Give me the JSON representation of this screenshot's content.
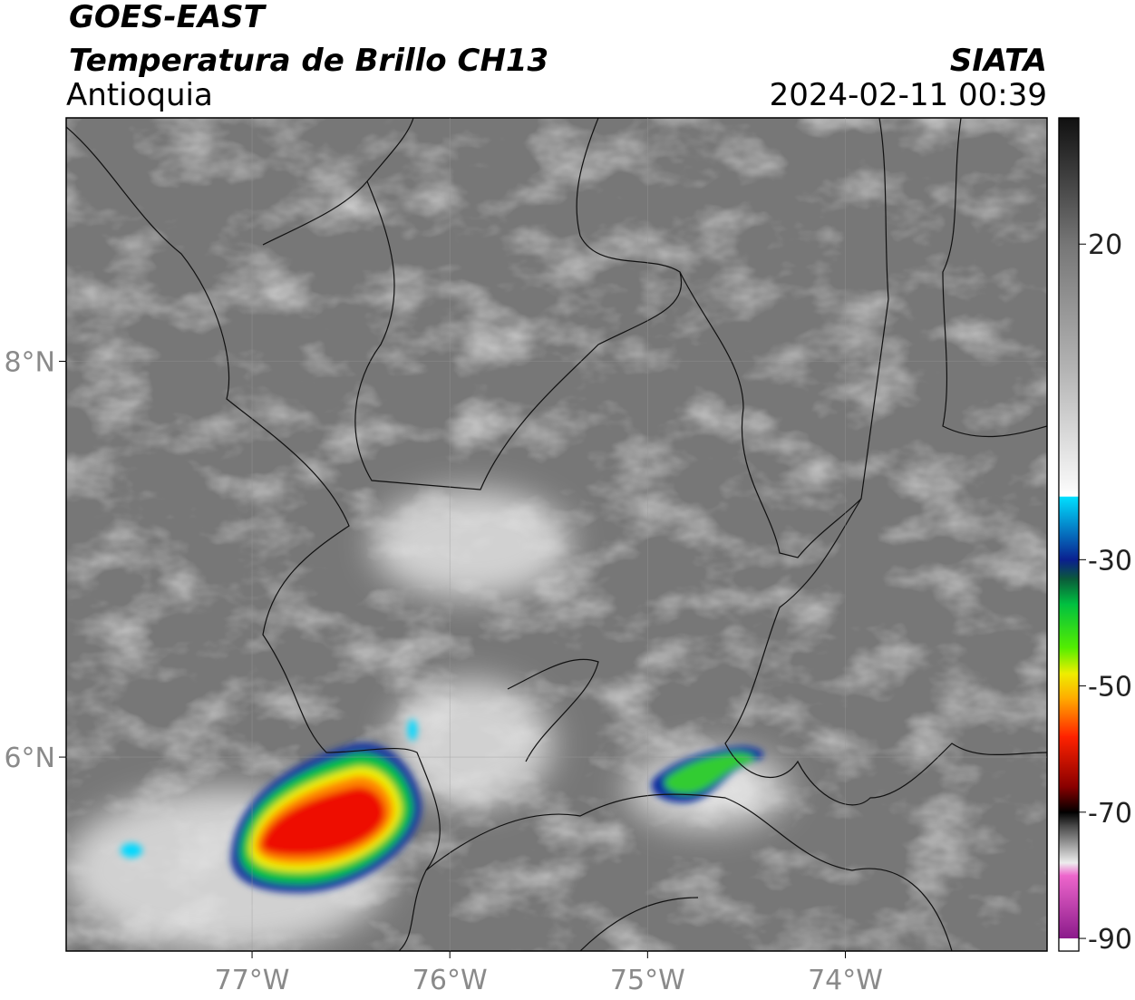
{
  "map": {
    "title": "GOES-EAST",
    "subtitle": "Temperatura de Brillo CH13",
    "region": "Antioquia",
    "source": "SIATA",
    "datetime": "2024-02-11 00:39",
    "lonlim": [
      -77.94,
      -72.98
    ],
    "latlim": [
      5.02,
      9.23
    ],
    "lonticks": [
      {
        "value": -77,
        "label": "77°W"
      },
      {
        "value": -76,
        "label": "76°W"
      },
      {
        "value": -75,
        "label": "75°W"
      },
      {
        "value": -74,
        "label": "74°W"
      }
    ],
    "latticks": [
      {
        "value": 8,
        "label": "8°N"
      },
      {
        "value": 6,
        "label": "6°N"
      }
    ],
    "grid": true,
    "colorbar": {
      "lim": [
        -92,
        40
      ],
      "ticks": [
        20,
        -30,
        -50,
        -70,
        -90
      ],
      "stops": [
        {
          "value": 40,
          "color": "#101010"
        },
        {
          "value": 20,
          "color": "#767676"
        },
        {
          "value": 0,
          "color": "#b4b4b4"
        },
        {
          "value": -18,
          "color": "#f6f6f6"
        },
        {
          "value": -20,
          "color": "#ffffff"
        },
        {
          "value": -20,
          "color": "#00e0ff"
        },
        {
          "value": -30,
          "color": "#0a1f8f"
        },
        {
          "value": -33,
          "color": "#0b5a3a"
        },
        {
          "value": -37,
          "color": "#00c040"
        },
        {
          "value": -44,
          "color": "#55ee00"
        },
        {
          "value": -48,
          "color": "#eeee00"
        },
        {
          "value": -52,
          "color": "#ffaa00"
        },
        {
          "value": -58,
          "color": "#ff2200"
        },
        {
          "value": -66,
          "color": "#880000"
        },
        {
          "value": -70,
          "color": "#000000"
        },
        {
          "value": -72,
          "color": "#444444"
        },
        {
          "value": -78,
          "color": "#eeeeee"
        },
        {
          "value": -80,
          "color": "#ee66cc"
        },
        {
          "value": -90,
          "color": "#8a1a8a"
        },
        {
          "value": -90,
          "color": "#ffffff"
        },
        {
          "value": -92,
          "color": "#ffffff"
        }
      ]
    }
  }
}
